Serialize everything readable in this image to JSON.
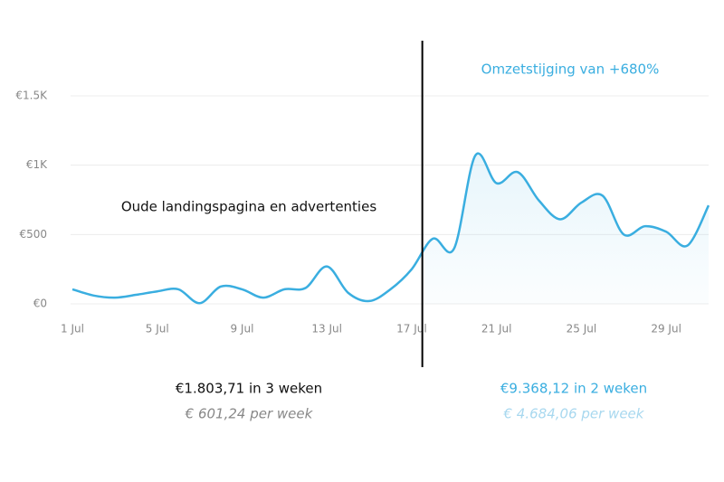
{
  "chart_data": {
    "type": "line",
    "categories": [
      "1 Jul",
      null,
      null,
      null,
      "5 Jul",
      null,
      null,
      null,
      "9 Jul",
      null,
      null,
      null,
      "13 Jul",
      null,
      null,
      null,
      "17 Jul",
      null,
      null,
      null,
      "21 Jul",
      null,
      null,
      null,
      "25 Jul",
      null,
      null,
      null,
      "29 Jul",
      null,
      null
    ],
    "series": [
      {
        "color": "#3aaee0",
        "values": [
          105,
          60,
          45,
          65,
          90,
          105,
          5,
          125,
          105,
          45,
          105,
          115,
          270,
          80,
          20,
          105,
          250,
          470,
          400,
          1070,
          870,
          950,
          745,
          610,
          730,
          780,
          500,
          560,
          520,
          420,
          710
        ]
      }
    ],
    "ylim": [
      0,
      1500
    ],
    "yticks": [
      {
        "value": 0,
        "label": "€0"
      },
      {
        "value": 500,
        "label": "€500"
      },
      {
        "value": 1000,
        "label": "€1K"
      },
      {
        "value": 1500,
        "label": "€1.5K"
      }
    ],
    "grid": true,
    "annotations": {
      "before": "Oude landingspagina en advertenties",
      "after": "Omzetstijging van +680%"
    },
    "summary": {
      "before_total": "€1.803,71 in 3 weken",
      "before_week": "€ 601,24 per week",
      "after_total": "€9.368,12 in 2 weken",
      "after_week": "€ 4.684,06 per week"
    }
  }
}
